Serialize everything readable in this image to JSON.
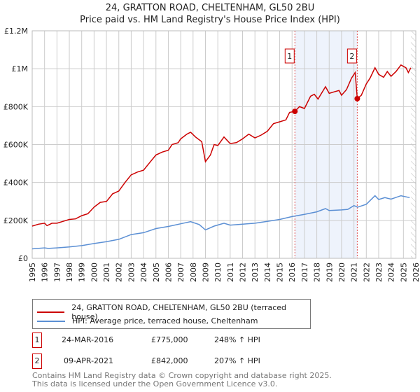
{
  "title": "24, GRATTON ROAD, CHELTENHAM, GL50 2BU",
  "subtitle": "Price paid vs. HM Land Registry's House Price Index (HPI)",
  "chart_data": {
    "type": "line",
    "title": "24, GRATTON ROAD, CHELTENHAM, GL50 2BU",
    "subtitle": "Price paid vs. HM Land Registry's House Price Index (HPI)",
    "xlim": [
      1995,
      2026
    ],
    "ylim": [
      0,
      1200000
    ],
    "x_ticks": [
      "1995",
      "1996",
      "1997",
      "1998",
      "1999",
      "2000",
      "2001",
      "2002",
      "2003",
      "2004",
      "2005",
      "2006",
      "2007",
      "2008",
      "2009",
      "2010",
      "2011",
      "2012",
      "2013",
      "2014",
      "2015",
      "2016",
      "2017",
      "2018",
      "2019",
      "2020",
      "2021",
      "2022",
      "2023",
      "2024",
      "2025",
      "2026"
    ],
    "y_ticks": [
      {
        "v": 0,
        "label": "£0"
      },
      {
        "v": 200000,
        "label": "£200K"
      },
      {
        "v": 400000,
        "label": "£400K"
      },
      {
        "v": 600000,
        "label": "£600K"
      },
      {
        "v": 800000,
        "label": "£800K"
      },
      {
        "v": 1000000,
        "label": "£1M"
      },
      {
        "v": 1200000,
        "label": "£1.2M"
      }
    ],
    "grid": true,
    "series": [
      {
        "name": "24, GRATTON ROAD, CHELTENHAM, GL50 2BU (terraced house)",
        "color": "#cc0000",
        "x": [
          1995,
          1995.5,
          1996,
          1996.2,
          1996.6,
          1997,
          1997.5,
          1998,
          1998.5,
          1999,
          1999.5,
          2000,
          2000.5,
          2001,
          2001.5,
          2002,
          2002.5,
          2003,
          2003.5,
          2004,
          2004.5,
          2005,
          2005.5,
          2006,
          2006.3,
          2006.8,
          2007,
          2007.5,
          2007.8,
          2008.2,
          2008.7,
          2009,
          2009.4,
          2009.7,
          2010,
          2010.5,
          2011,
          2011.5,
          2012,
          2012.5,
          2013,
          2013.5,
          2014,
          2014.5,
          2015,
          2015.5,
          2015.8,
          2016.23,
          2016.6,
          2017,
          2017.5,
          2017.8,
          2018.1,
          2018.7,
          2019,
          2019.5,
          2019.8,
          2020,
          2020.4,
          2020.8,
          2021.1,
          2021.27,
          2021.6,
          2022,
          2022.3,
          2022.7,
          2023,
          2023.4,
          2023.7,
          2024,
          2024.4,
          2024.8,
          2025.2,
          2025.4,
          2025.6
        ],
        "y": [
          170000,
          180000,
          185000,
          172000,
          185000,
          185000,
          195000,
          205000,
          208000,
          225000,
          235000,
          270000,
          295000,
          300000,
          340000,
          355000,
          400000,
          440000,
          455000,
          465000,
          505000,
          545000,
          560000,
          570000,
          600000,
          610000,
          630000,
          655000,
          665000,
          640000,
          615000,
          510000,
          545000,
          600000,
          595000,
          640000,
          605000,
          610000,
          630000,
          655000,
          635000,
          650000,
          670000,
          710000,
          720000,
          730000,
          770000,
          775000,
          800000,
          790000,
          855000,
          865000,
          840000,
          905000,
          870000,
          880000,
          885000,
          860000,
          890000,
          950000,
          980000,
          842000,
          860000,
          920000,
          950000,
          1005000,
          970000,
          955000,
          985000,
          960000,
          985000,
          1020000,
          1005000,
          980000,
          1005000
        ]
      },
      {
        "name": "HPI: Average price, terraced house, Cheltenham",
        "color": "#5b8fd4",
        "x": [
          1995,
          1996,
          1996.3,
          1997,
          1998,
          1999,
          2000,
          2001,
          2002,
          2003,
          2004,
          2005,
          2006,
          2007,
          2007.8,
          2008.5,
          2009,
          2009.7,
          2010.5,
          2011,
          2012,
          2013,
          2014,
          2015,
          2016,
          2017,
          2018,
          2018.7,
          2019,
          2020,
          2020.5,
          2021,
          2021.3,
          2022,
          2022.7,
          2023,
          2023.5,
          2024,
          2024.8,
          2025.5
        ],
        "y": [
          50000,
          55000,
          52000,
          55000,
          60000,
          67000,
          78000,
          88000,
          100000,
          125000,
          135000,
          157000,
          168000,
          182000,
          193000,
          178000,
          150000,
          170000,
          185000,
          175000,
          180000,
          185000,
          195000,
          205000,
          220000,
          232000,
          245000,
          262000,
          252000,
          255000,
          258000,
          278000,
          270000,
          285000,
          330000,
          310000,
          320000,
          312000,
          330000,
          320000
        ]
      }
    ],
    "annotations": [
      {
        "label": "1",
        "x": 2016.23,
        "y": 775000
      },
      {
        "label": "2",
        "x": 2021.27,
        "y": 842000
      }
    ],
    "shaded_range": [
      2016.23,
      2021.27
    ],
    "hatched_from": 2025.6,
    "legend": "bottom"
  },
  "legend": {
    "items": [
      {
        "label": "24, GRATTON ROAD, CHELTENHAM, GL50 2BU (terraced house)",
        "color": "#cc0000"
      },
      {
        "label": "HPI: Average price, terraced house, Cheltenham",
        "color": "#5b8fd4"
      }
    ]
  },
  "transactions": [
    {
      "num": "1",
      "date": "24-MAR-2016",
      "price": "£775,000",
      "hpi": "248% ↑ HPI"
    },
    {
      "num": "2",
      "date": "09-APR-2021",
      "price": "£842,000",
      "hpi": "207% ↑ HPI"
    }
  ],
  "footer": {
    "line1": "Contains HM Land Registry data © Crown copyright and database right 2025.",
    "line2": "This data is licensed under the Open Government Licence v3.0."
  }
}
